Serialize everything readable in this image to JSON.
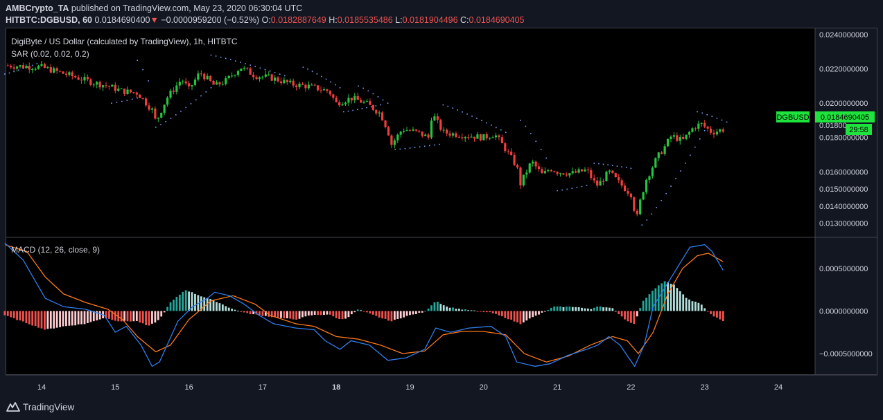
{
  "header": {
    "author": "AMBCrypto_TA",
    "published_text": "published on TradingView.com, May 23, 2020 06:30:04 UTC",
    "symbol_line": "HITBTC:DGBUSD, 60",
    "last_price": "0.0184690400",
    "change_arrow": "▼",
    "change": "−0.0000959200 (−0.52%)",
    "o_label": "O:",
    "o_value": "0.0182887649",
    "h_label": "H:",
    "h_value": "0.0185535486",
    "l_label": "L:",
    "l_value": "0.0181904496",
    "c_label": "C:",
    "c_value": "0.0184690405"
  },
  "price_pane": {
    "legend_title": "DigiByte / US Dollar (calculated by TradingView), 1h, HITBTC",
    "indicator_label": "SAR (0.02, 0.02, 0.2)",
    "price_tag_symbol": "DGBUSD",
    "price_tag_value": "0.0184690405",
    "countdown": "29:58",
    "partial_label": "0.01800"
  },
  "macd_pane": {
    "legend_title": "MACD (12, 26, close, 9)"
  },
  "footer": {
    "brand": "TradingView"
  },
  "colors": {
    "background": "#131722",
    "bull": "#26c53f",
    "bear": "#ef3e3e",
    "sar": "#7aa0ff",
    "macd_line": "#2f7ff0",
    "signal_line": "#ff7a1a",
    "hist_pos": "#26a69a",
    "hist_pos_light": "#b2dfdb",
    "hist_neg": "#ef5350",
    "hist_neg_light": "#ffcdd2",
    "price_tag": "#1ee33c"
  },
  "chart_data": [
    {
      "type": "candlestick",
      "title": "DigiByte / US Dollar (calculated by TradingView), 1h, HITBTC",
      "x_ticks": [
        "14",
        "15",
        "16",
        "17",
        "18",
        "19",
        "20",
        "21",
        "22",
        "23",
        "24"
      ],
      "y_ticks": [
        "0.0130000000",
        "0.0140000000",
        "0.0150000000",
        "0.0160000000",
        "0.0180000000",
        "0.0200000000",
        "0.0220000000",
        "0.0240000000"
      ],
      "ylim": [
        0.0123,
        0.0242
      ],
      "close_keyframes": [
        [
          13.5,
          0.0222
        ],
        [
          14.0,
          0.0221
        ],
        [
          14.4,
          0.0216
        ],
        [
          14.7,
          0.0212
        ],
        [
          14.9,
          0.021
        ],
        [
          15.1,
          0.0207
        ],
        [
          15.3,
          0.0206
        ],
        [
          15.5,
          0.0196
        ],
        [
          15.55,
          0.0189
        ],
        [
          15.7,
          0.0203
        ],
        [
          15.9,
          0.0214
        ],
        [
          16.0,
          0.0208
        ],
        [
          16.15,
          0.0218
        ],
        [
          16.35,
          0.021
        ],
        [
          16.5,
          0.0213
        ],
        [
          16.7,
          0.0221
        ],
        [
          16.9,
          0.0216
        ],
        [
          17.1,
          0.0215
        ],
        [
          17.4,
          0.0211
        ],
        [
          17.6,
          0.021
        ],
        [
          17.9,
          0.0207
        ],
        [
          18.0,
          0.02
        ],
        [
          18.2,
          0.0203
        ],
        [
          18.4,
          0.02
        ],
        [
          18.6,
          0.0194
        ],
        [
          18.7,
          0.0184
        ],
        [
          18.75,
          0.0176
        ],
        [
          18.9,
          0.0185
        ],
        [
          19.1,
          0.0183
        ],
        [
          19.25,
          0.018
        ],
        [
          19.3,
          0.0194
        ],
        [
          19.45,
          0.0183
        ],
        [
          19.6,
          0.0182
        ],
        [
          19.8,
          0.0181
        ],
        [
          20.0,
          0.018
        ],
        [
          20.15,
          0.0182
        ],
        [
          20.3,
          0.0173
        ],
        [
          20.45,
          0.0163
        ],
        [
          20.5,
          0.0153
        ],
        [
          20.65,
          0.0166
        ],
        [
          20.8,
          0.0158
        ],
        [
          20.9,
          0.0162
        ],
        [
          21.0,
          0.016
        ],
        [
          21.2,
          0.0159
        ],
        [
          21.4,
          0.0161
        ],
        [
          21.5,
          0.0154
        ],
        [
          21.55,
          0.0152
        ],
        [
          21.7,
          0.016
        ],
        [
          21.85,
          0.0153
        ],
        [
          22.0,
          0.0147
        ],
        [
          22.05,
          0.0137
        ],
        [
          22.08,
          0.0133
        ],
        [
          22.12,
          0.0142
        ],
        [
          22.2,
          0.0155
        ],
        [
          22.35,
          0.0168
        ],
        [
          22.45,
          0.0174
        ],
        [
          22.55,
          0.0181
        ],
        [
          22.7,
          0.0178
        ],
        [
          22.85,
          0.0186
        ],
        [
          22.95,
          0.0188
        ],
        [
          23.1,
          0.0183
        ],
        [
          23.25,
          0.01847
        ]
      ],
      "sar_segments": [
        {
          "from": 13.5,
          "to": 14.0,
          "y0": 0.0217,
          "y1": 0.0224
        },
        {
          "from": 14.95,
          "to": 15.3,
          "y0": 0.02,
          "y1": 0.0203
        },
        {
          "from": 15.3,
          "to": 15.45,
          "y0": 0.0225,
          "y1": 0.0213
        },
        {
          "from": 15.55,
          "to": 16.3,
          "y0": 0.0186,
          "y1": 0.0209
        },
        {
          "from": 16.3,
          "to": 17.3,
          "y0": 0.0228,
          "y1": 0.0216
        },
        {
          "from": 17.55,
          "to": 18.05,
          "y0": 0.0221,
          "y1": 0.0209
        },
        {
          "from": 18.1,
          "to": 18.6,
          "y0": 0.0195,
          "y1": 0.0199
        },
        {
          "from": 18.3,
          "to": 18.7,
          "y0": 0.021,
          "y1": 0.02
        },
        {
          "from": 18.8,
          "to": 19.4,
          "y0": 0.0173,
          "y1": 0.0176
        },
        {
          "from": 19.45,
          "to": 20.3,
          "y0": 0.0199,
          "y1": 0.0183
        },
        {
          "from": 20.5,
          "to": 20.85,
          "y0": 0.019,
          "y1": 0.0168
        },
        {
          "from": 21.0,
          "to": 21.4,
          "y0": 0.0149,
          "y1": 0.0152
        },
        {
          "from": 21.5,
          "to": 22.0,
          "y0": 0.0165,
          "y1": 0.0162
        },
        {
          "from": 22.15,
          "to": 23.0,
          "y0": 0.0129,
          "y1": 0.0184
        },
        {
          "from": 22.9,
          "to": 23.3,
          "y0": 0.0195,
          "y1": 0.0189
        }
      ]
    },
    {
      "type": "line",
      "title": "MACD (12, 26, close, 9)",
      "y_ticks": [
        "−0.0005000000",
        "0.0000000000",
        "0.0005000000"
      ],
      "ylim": [
        -0.00072,
        0.00085
      ],
      "series": [
        {
          "values": [
            [
              13.5,
              0.0008
            ],
            [
              13.75,
              0.0006
            ],
            [
              14.05,
              0.00015
            ],
            [
              14.3,
              5e-05
            ],
            [
              14.6,
              2e-05
            ],
            [
              14.85,
              -5e-05
            ],
            [
              15.0,
              -0.00025
            ],
            [
              15.15,
              -0.00018
            ],
            [
              15.35,
              -0.0004
            ],
            [
              15.5,
              -0.00065
            ],
            [
              15.6,
              -0.0006
            ],
            [
              15.85,
              -0.00012
            ],
            [
              16.05,
              5e-05
            ],
            [
              16.25,
              0.00015
            ],
            [
              16.35,
              0.00022
            ],
            [
              16.55,
              0.00018
            ],
            [
              16.75,
              8e-05
            ],
            [
              16.95,
              -5e-05
            ],
            [
              17.15,
              -0.00015
            ],
            [
              17.45,
              -0.0002
            ],
            [
              17.7,
              -0.00022
            ],
            [
              17.85,
              -0.00035
            ],
            [
              18.05,
              -0.00045
            ],
            [
              18.2,
              -0.00035
            ],
            [
              18.45,
              -0.0004
            ],
            [
              18.7,
              -0.00058
            ],
            [
              18.95,
              -0.00055
            ],
            [
              19.2,
              -0.00045
            ],
            [
              19.35,
              -0.0002
            ],
            [
              19.55,
              -0.00025
            ],
            [
              19.8,
              -0.0002
            ],
            [
              20.1,
              -0.00018
            ],
            [
              20.3,
              -0.0003
            ],
            [
              20.45,
              -0.0006
            ],
            [
              20.7,
              -0.00065
            ],
            [
              20.9,
              -0.00062
            ],
            [
              21.15,
              -0.00052
            ],
            [
              21.4,
              -0.00045
            ],
            [
              21.55,
              -0.0004
            ],
            [
              21.7,
              -0.0003
            ],
            [
              21.85,
              -0.0004
            ],
            [
              22.05,
              -0.00065
            ],
            [
              22.18,
              -0.0004
            ],
            [
              22.3,
              5e-05
            ],
            [
              22.55,
              0.0004
            ],
            [
              22.8,
              0.00075
            ],
            [
              23.0,
              0.00078
            ],
            [
              23.1,
              0.0007
            ],
            [
              23.25,
              0.00048
            ]
          ]
        },
        {
          "values": [
            [
              13.5,
              0.00078
            ],
            [
              13.8,
              0.0007
            ],
            [
              14.05,
              0.0004
            ],
            [
              14.3,
              0.0002
            ],
            [
              14.6,
              0.0001
            ],
            [
              14.9,
              2e-05
            ],
            [
              15.1,
              -0.0001
            ],
            [
              15.3,
              -0.0003
            ],
            [
              15.55,
              -0.00048
            ],
            [
              15.75,
              -0.0004
            ],
            [
              16.0,
              -0.0001
            ],
            [
              16.3,
              0.00012
            ],
            [
              16.6,
              0.00018
            ],
            [
              16.9,
              8e-05
            ],
            [
              17.1,
              -5e-05
            ],
            [
              17.45,
              -0.00015
            ],
            [
              17.7,
              -0.00018
            ],
            [
              18.0,
              -0.0003
            ],
            [
              18.3,
              -0.00033
            ],
            [
              18.6,
              -0.0004
            ],
            [
              18.9,
              -0.0005
            ],
            [
              19.2,
              -0.00047
            ],
            [
              19.45,
              -0.00028
            ],
            [
              19.7,
              -0.00024
            ],
            [
              20.0,
              -0.00024
            ],
            [
              20.3,
              -0.00028
            ],
            [
              20.55,
              -0.0005
            ],
            [
              20.85,
              -0.0006
            ],
            [
              21.15,
              -0.00053
            ],
            [
              21.45,
              -0.0004
            ],
            [
              21.75,
              -0.0003
            ],
            [
              21.95,
              -0.00035
            ],
            [
              22.1,
              -0.0005
            ],
            [
              22.3,
              -0.00025
            ],
            [
              22.5,
              0.0002
            ],
            [
              22.7,
              0.0005
            ],
            [
              22.9,
              0.00065
            ],
            [
              23.05,
              0.00068
            ],
            [
              23.25,
              0.00058
            ]
          ]
        }
      ],
      "histogram_keyframes": [
        [
          13.5,
          -5e-05
        ],
        [
          14.05,
          -0.00022
        ],
        [
          14.3,
          -0.00018
        ],
        [
          14.6,
          -0.00015
        ],
        [
          14.85,
          -8e-05
        ],
        [
          15.05,
          -0.00012
        ],
        [
          15.3,
          -0.00012
        ],
        [
          15.45,
          -0.00018
        ],
        [
          15.6,
          -0.0001
        ],
        [
          15.75,
          0.0001
        ],
        [
          15.95,
          0.00025
        ],
        [
          16.15,
          0.00018
        ],
        [
          16.35,
          0.00012
        ],
        [
          16.6,
          2e-05
        ],
        [
          16.8,
          -3e-05
        ],
        [
          17.05,
          -6e-05
        ],
        [
          17.2,
          -8e-05
        ],
        [
          17.45,
          -0.0001
        ],
        [
          17.65,
          -5e-05
        ],
        [
          17.9,
          -4e-05
        ],
        [
          18.05,
          -0.0001
        ],
        [
          18.15,
          -8e-05
        ],
        [
          18.3,
          2e-05
        ],
        [
          18.6,
          -8e-05
        ],
        [
          18.75,
          -0.00012
        ],
        [
          18.95,
          -6e-05
        ],
        [
          19.2,
          -1e-05
        ],
        [
          19.35,
          0.00012
        ],
        [
          19.5,
          5e-05
        ],
        [
          19.7,
          2e-05
        ],
        [
          20.1,
          -2e-05
        ],
        [
          20.3,
          -8e-05
        ],
        [
          20.5,
          -0.00015
        ],
        [
          20.6,
          -0.0001
        ],
        [
          20.8,
          -2e-05
        ],
        [
          20.95,
          5e-05
        ],
        [
          21.25,
          5e-05
        ],
        [
          21.45,
          2e-05
        ],
        [
          21.55,
          6e-05
        ],
        [
          21.75,
          3e-05
        ],
        [
          21.95,
          -0.00012
        ],
        [
          22.05,
          -0.00015
        ],
        [
          22.15,
          0.0001
        ],
        [
          22.3,
          0.00025
        ],
        [
          22.45,
          0.00035
        ],
        [
          22.6,
          0.0003
        ],
        [
          22.75,
          0.00015
        ],
        [
          22.95,
          8e-05
        ],
        [
          23.1,
          -5e-05
        ],
        [
          23.25,
          -0.00012
        ]
      ]
    }
  ]
}
